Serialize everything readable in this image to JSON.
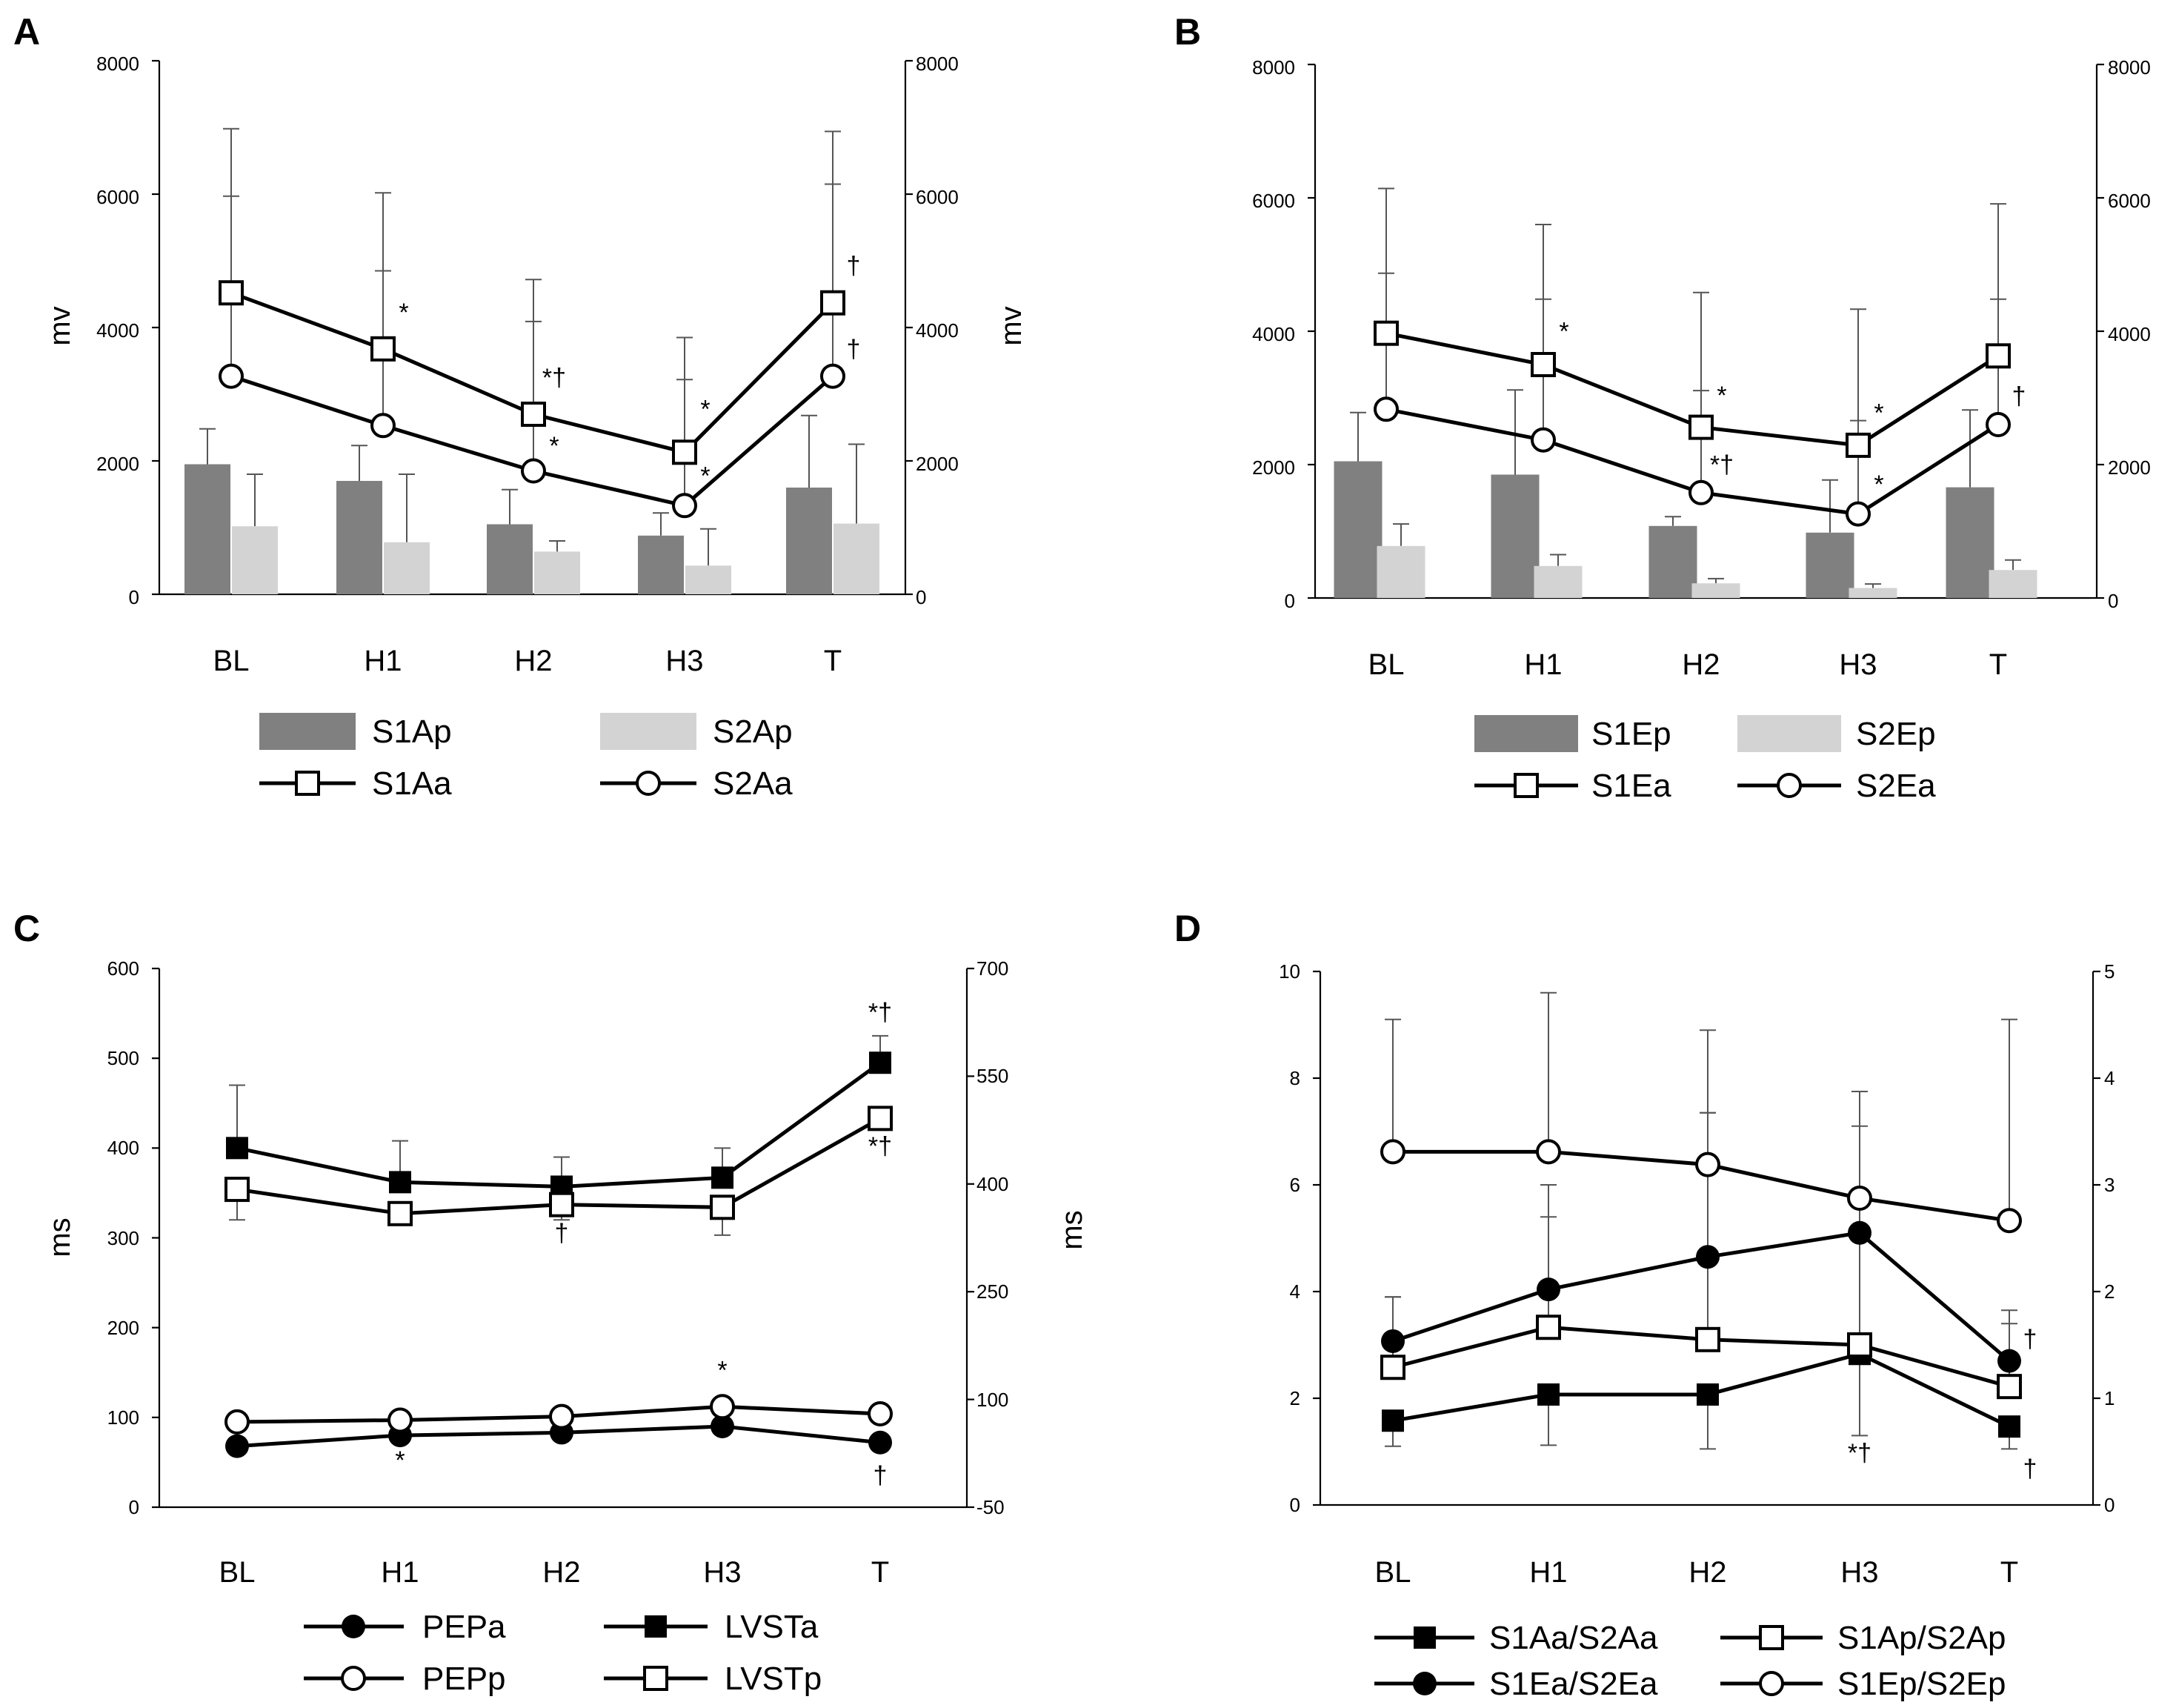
{
  "chart_data": [
    {
      "panel": "A",
      "type": "bar",
      "categories": [
        "BL",
        "H1",
        "H2",
        "H3",
        "T"
      ],
      "ylabel": "mv",
      "ylabel_right": "mv",
      "ylim": [
        0,
        8000
      ],
      "ylim_right": [
        0,
        8000
      ],
      "yticks": [
        "0",
        "2000",
        "4000",
        "6000",
        "8000"
      ],
      "yticks_right": [
        "0",
        "2000",
        "4000",
        "6000",
        "8000"
      ],
      "bars": [
        {
          "name": "S1Ap",
          "color": "#808080",
          "values": [
            1950,
            1700,
            1050,
            880,
            1600
          ],
          "err": [
            2480,
            2230,
            1570,
            1220,
            2680
          ]
        },
        {
          "name": "S2Ap",
          "color": "#d3d3d3",
          "values": [
            1020,
            780,
            640,
            430,
            1060
          ],
          "err": [
            1800,
            1800,
            800,
            980,
            2250
          ]
        }
      ],
      "lines": [
        {
          "name": "S1Aa",
          "marker": "square-open",
          "values": [
            4520,
            3680,
            2700,
            2130,
            4370
          ],
          "err": [
            6980,
            6020,
            4720,
            3850,
            6940
          ]
        },
        {
          "name": "S2Aa",
          "marker": "circle-open",
          "values": [
            3270,
            2530,
            1850,
            1330,
            3270
          ],
          "err": [
            5970,
            4850,
            4090,
            3220,
            6150
          ]
        }
      ],
      "annotations": [
        {
          "cat": "H1",
          "value": 4100,
          "text": "*"
        },
        {
          "cat": "H2",
          "value": 3120,
          "text": "*†"
        },
        {
          "cat": "H2",
          "value": 2100,
          "text": "*"
        },
        {
          "cat": "H3",
          "value": 2650,
          "text": "*"
        },
        {
          "cat": "H3",
          "value": 1650,
          "text": "*"
        },
        {
          "cat": "T",
          "value": 4800,
          "text": "†"
        },
        {
          "cat": "T",
          "value": 3550,
          "text": "†"
        }
      ],
      "legend": [
        "S1Ap",
        "S2Ap",
        "S1Aa",
        "S2Aa"
      ]
    },
    {
      "panel": "B",
      "type": "bar",
      "categories": [
        "BL",
        "H1",
        "H2",
        "H3",
        "T"
      ],
      "ylim": [
        0,
        8000
      ],
      "ylim_right": [
        0,
        8000
      ],
      "yticks": [
        "0",
        "2000",
        "4000",
        "6000",
        "8000"
      ],
      "yticks_right": [
        "0",
        "2000",
        "4000",
        "6000",
        "8000"
      ],
      "bars": [
        {
          "name": "S1Ep",
          "color": "#808080",
          "values": [
            2050,
            1850,
            1080,
            980,
            1660
          ],
          "err": [
            2780,
            3120,
            1220,
            1770,
            2820
          ]
        },
        {
          "name": "S2Ep",
          "color": "#d3d3d3",
          "values": [
            780,
            480,
            220,
            150,
            420
          ],
          "err": [
            1110,
            650,
            290,
            210,
            570
          ]
        }
      ],
      "lines": [
        {
          "name": "S1Ea",
          "marker": "square-open",
          "values": [
            3970,
            3500,
            2560,
            2290,
            3630
          ],
          "err": [
            6140,
            5600,
            4580,
            4330,
            5910
          ]
        },
        {
          "name": "S2Ea",
          "marker": "circle-open",
          "values": [
            2830,
            2370,
            1580,
            1260,
            2600
          ],
          "err": [
            4870,
            4480,
            3110,
            2660,
            4480
          ]
        }
      ],
      "annotations": [
        {
          "cat": "H1",
          "value": 3870,
          "text": "*"
        },
        {
          "cat": "H2",
          "value": 2910,
          "text": "*"
        },
        {
          "cat": "H2",
          "value": 1870,
          "text": "*†"
        },
        {
          "cat": "H3",
          "value": 2650,
          "text": "*"
        },
        {
          "cat": "H3",
          "value": 1580,
          "text": "*"
        },
        {
          "cat": "T",
          "value": 2900,
          "text": "†"
        }
      ],
      "legend": [
        "S1Ep",
        "S2Ep",
        "S1Ea",
        "S2Ea"
      ]
    },
    {
      "panel": "C",
      "type": "line",
      "categories": [
        "BL",
        "H1",
        "H2",
        "H3",
        "T"
      ],
      "ylabel": "ms",
      "ylabel_right": "ms",
      "ylim": [
        0,
        600
      ],
      "ylim_right": [
        -50,
        700
      ],
      "yticks": [
        "0",
        "100",
        "200",
        "300",
        "400",
        "500",
        "600"
      ],
      "yticks_right": [
        "-50",
        "100",
        "250",
        "400",
        "550",
        "700"
      ],
      "lines": [
        {
          "name": "PEPa",
          "marker": "circle-filled",
          "values": [
            68,
            80,
            83,
            90,
            72
          ]
        },
        {
          "name": "PEPp",
          "marker": "circle-open",
          "values": [
            95,
            97,
            101,
            112,
            104
          ]
        },
        {
          "name": "LVSTa",
          "marker": "square-filled",
          "values": [
            400,
            362,
            357,
            367,
            495
          ],
          "err": [
            470,
            408,
            390,
            400,
            525
          ]
        },
        {
          "name": "LVSTp",
          "marker": "square-open",
          "values": [
            354,
            327,
            337,
            334,
            433
          ],
          "errlow": [
            320,
            320,
            320,
            303,
            420
          ]
        }
      ],
      "annotations": [
        {
          "cat": "T",
          "value": 542,
          "text": "*†"
        },
        {
          "cat": "T",
          "value": 393,
          "text": "*†"
        },
        {
          "cat": "H2",
          "value": 296,
          "text": "†"
        },
        {
          "cat": "H3",
          "value": 143,
          "text": "*"
        },
        {
          "cat": "H1",
          "value": 43,
          "text": "*"
        },
        {
          "cat": "T",
          "value": 26,
          "text": "†"
        }
      ],
      "legend": [
        "PEPa",
        "LVSTa",
        "PEPp",
        "LVSTp"
      ]
    },
    {
      "panel": "D",
      "type": "line",
      "categories": [
        "BL",
        "H1",
        "H2",
        "H3",
        "T"
      ],
      "ylim": [
        0,
        10
      ],
      "ylim_right": [
        0,
        5
      ],
      "yticks": [
        "0",
        "2",
        "4",
        "6",
        "8",
        "10"
      ],
      "yticks_right": [
        "0",
        "1",
        "2",
        "3",
        "4",
        "5"
      ],
      "lines": [
        {
          "name": "S1Aa/S2Aa",
          "marker": "square-filled",
          "values": [
            1.58,
            2.07,
            2.07,
            2.83,
            1.47
          ],
          "errlow": [
            1.1,
            1.12,
            1.05,
            1.3,
            1.05
          ]
        },
        {
          "name": "S1Ap/S2Ap",
          "marker": "square-open",
          "values": [
            2.58,
            3.33,
            3.1,
            3.0,
            2.22
          ],
          "err": [
            3.9,
            5.4,
            7.35,
            7.1,
            3.4
          ]
        },
        {
          "name": "S1Ea/S2Ea",
          "marker": "circle-filled",
          "values": [
            3.07,
            4.04,
            4.65,
            5.1,
            2.7
          ],
          "err": [
            3.9,
            6.0,
            7.35,
            7.75,
            3.65
          ]
        },
        {
          "name": "S1Ep/S2Ep",
          "marker": "circle-open",
          "values": [
            6.62,
            6.62,
            6.38,
            5.75,
            5.33
          ],
          "err": [
            9.1,
            9.6,
            8.9,
            7.75,
            9.1
          ]
        }
      ],
      "annotations": [
        {
          "cat": "T",
          "value": 2.95,
          "text": "†"
        },
        {
          "cat": "H3",
          "value": 0.82,
          "text": "*†"
        },
        {
          "cat": "T",
          "value": 0.52,
          "text": "†"
        }
      ],
      "legend": [
        "S1Aa/S2Aa",
        "S1Ap/S2Ap",
        "S1Ea/S2Ea",
        "S1Ep/S2Ep"
      ]
    }
  ],
  "panels": {
    "a": {
      "letter": "A",
      "ylabel": "mv",
      "ylabel_right": "mv",
      "categories": [
        "BL",
        "H1",
        "H2",
        "H3",
        "T"
      ],
      "yticks": [
        "0",
        "2000",
        "4000",
        "6000",
        "8000"
      ],
      "yticks_right": [
        "0",
        "2000",
        "4000",
        "6000",
        "8000"
      ],
      "legend": [
        "S1Ap",
        "S2Ap",
        "S1Aa",
        "S2Aa"
      ]
    },
    "b": {
      "letter": "B",
      "categories": [
        "BL",
        "H1",
        "H2",
        "H3",
        "T"
      ],
      "yticks": [
        "0",
        "2000",
        "4000",
        "6000",
        "8000"
      ],
      "yticks_right": [
        "0",
        "2000",
        "4000",
        "6000",
        "8000"
      ],
      "legend": [
        "S1Ep",
        "S2Ep",
        "S1Ea",
        "S2Ea"
      ]
    },
    "c": {
      "letter": "C",
      "ylabel": "ms",
      "ylabel_right": "ms",
      "categories": [
        "BL",
        "H1",
        "H2",
        "H3",
        "T"
      ],
      "yticks": [
        "0",
        "100",
        "200",
        "300",
        "400",
        "500",
        "600"
      ],
      "yticks_right": [
        "-50",
        "100",
        "250",
        "400",
        "550",
        "700"
      ],
      "legend": [
        "PEPa",
        "LVSTa",
        "PEPp",
        "LVSTp"
      ]
    },
    "d": {
      "letter": "D",
      "categories": [
        "BL",
        "H1",
        "H2",
        "H3",
        "T"
      ],
      "yticks": [
        "0",
        "2",
        "4",
        "6",
        "8",
        "10"
      ],
      "yticks_right": [
        "0",
        "1",
        "2",
        "3",
        "4",
        "5"
      ],
      "legend": [
        "S1Aa/S2Aa",
        "S1Ap/S2Ap",
        "S1Ea/S2Ea",
        "S1Ep/S2Ep"
      ]
    }
  }
}
